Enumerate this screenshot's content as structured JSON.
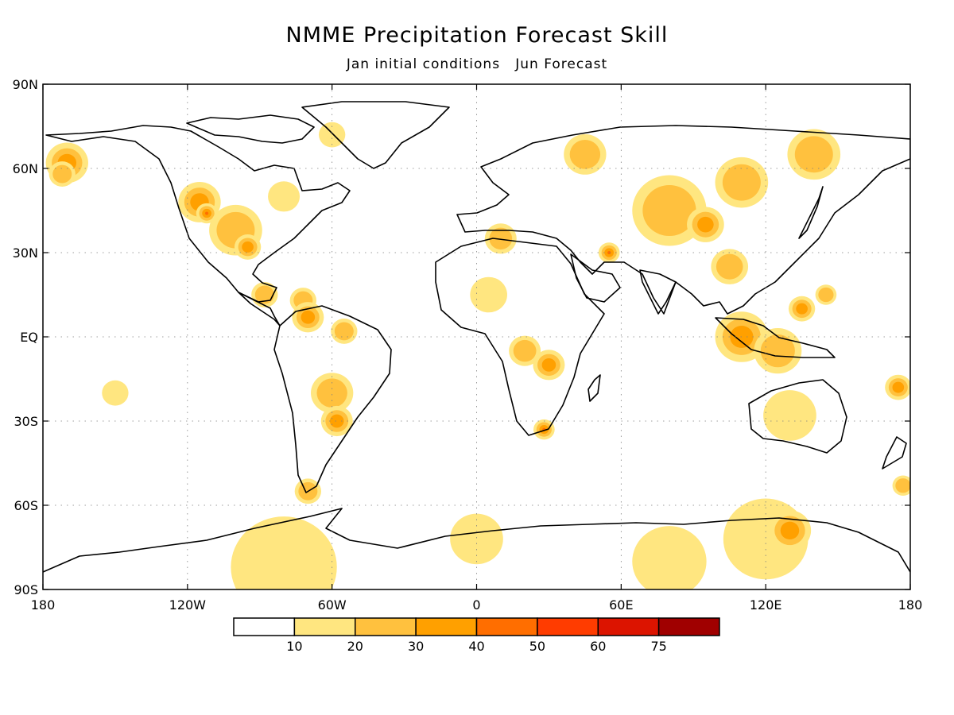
{
  "title": "NMME Precipitation Forecast Skill",
  "subtitle": "Jan initial conditions   Jun Forecast",
  "axes": {
    "lon_ticks": [
      {
        "value": -180,
        "label": "180"
      },
      {
        "value": -120,
        "label": "120W"
      },
      {
        "value": -60,
        "label": "60W"
      },
      {
        "value": 0,
        "label": "0"
      },
      {
        "value": 60,
        "label": "60E"
      },
      {
        "value": 120,
        "label": "120E"
      },
      {
        "value": 180,
        "label": "180"
      }
    ],
    "lat_ticks": [
      {
        "value": 90,
        "label": "90N"
      },
      {
        "value": 60,
        "label": "60N"
      },
      {
        "value": 30,
        "label": "30N"
      },
      {
        "value": 0,
        "label": "EQ"
      },
      {
        "value": -30,
        "label": "30S"
      },
      {
        "value": -60,
        "label": "60S"
      },
      {
        "value": -90,
        "label": "90S"
      }
    ],
    "lon_range": [
      -180,
      180
    ],
    "lat_range": [
      -90,
      90
    ],
    "grid": true
  },
  "colorbar": {
    "labels": [
      "10",
      "20",
      "30",
      "40",
      "50",
      "60",
      "75"
    ],
    "colors": [
      "#ffffff",
      "#ffe680",
      "#ffc13e",
      "#ffa000",
      "#ff6e00",
      "#ff3c00",
      "#dc1400",
      "#a00000"
    ]
  },
  "skill_regions": [
    {
      "lon": -170,
      "lat": 62,
      "r": 8,
      "level": 3
    },
    {
      "lon": -172,
      "lat": 58,
      "r": 5,
      "level": 2
    },
    {
      "lon": -115,
      "lat": 48,
      "r": 8,
      "level": 3
    },
    {
      "lon": -112,
      "lat": 44,
      "r": 4,
      "level": 4
    },
    {
      "lon": -100,
      "lat": 38,
      "r": 10,
      "level": 2
    },
    {
      "lon": -95,
      "lat": 32,
      "r": 5,
      "level": 3
    },
    {
      "lon": -80,
      "lat": 50,
      "r": 6,
      "level": 1
    },
    {
      "lon": -60,
      "lat": 72,
      "r": 5,
      "level": 1
    },
    {
      "lon": -88,
      "lat": 15,
      "r": 5,
      "level": 2
    },
    {
      "lon": -72,
      "lat": 13,
      "r": 5,
      "level": 2
    },
    {
      "lon": -70,
      "lat": 7,
      "r": 6,
      "level": 3
    },
    {
      "lon": -55,
      "lat": 2,
      "r": 5,
      "level": 2
    },
    {
      "lon": -60,
      "lat": -20,
      "r": 8,
      "level": 2
    },
    {
      "lon": -58,
      "lat": -30,
      "r": 6,
      "level": 3
    },
    {
      "lon": -70,
      "lat": -55,
      "r": 5,
      "level": 2
    },
    {
      "lon": 10,
      "lat": 35,
      "r": 6,
      "level": 2
    },
    {
      "lon": 5,
      "lat": 15,
      "r": 7,
      "level": 1
    },
    {
      "lon": 20,
      "lat": -5,
      "r": 6,
      "level": 2
    },
    {
      "lon": 30,
      "lat": -10,
      "r": 6,
      "level": 3
    },
    {
      "lon": 28,
      "lat": -33,
      "r": 4,
      "level": 4
    },
    {
      "lon": 45,
      "lat": 65,
      "r": 8,
      "level": 2
    },
    {
      "lon": 55,
      "lat": 30,
      "r": 4,
      "level": 4
    },
    {
      "lon": 80,
      "lat": 45,
      "r": 14,
      "level": 2
    },
    {
      "lon": 95,
      "lat": 40,
      "r": 7,
      "level": 3
    },
    {
      "lon": 110,
      "lat": 55,
      "r": 10,
      "level": 2
    },
    {
      "lon": 140,
      "lat": 65,
      "r": 10,
      "level": 2
    },
    {
      "lon": 105,
      "lat": 25,
      "r": 7,
      "level": 2
    },
    {
      "lon": 110,
      "lat": 0,
      "r": 10,
      "level": 3
    },
    {
      "lon": 125,
      "lat": -5,
      "r": 9,
      "level": 2
    },
    {
      "lon": 135,
      "lat": 10,
      "r": 5,
      "level": 3
    },
    {
      "lon": 145,
      "lat": 15,
      "r": 4,
      "level": 2
    },
    {
      "lon": 130,
      "lat": -28,
      "r": 10,
      "level": 1
    },
    {
      "lon": 175,
      "lat": -18,
      "r": 5,
      "level": 3
    },
    {
      "lon": -150,
      "lat": -20,
      "r": 5,
      "level": 1
    },
    {
      "lon": 177,
      "lat": -53,
      "r": 4,
      "level": 2
    },
    {
      "lon": 120,
      "lat": -72,
      "r": 16,
      "level": 1
    },
    {
      "lon": 130,
      "lat": -69,
      "r": 8,
      "level": 3
    },
    {
      "lon": 0,
      "lat": -72,
      "r": 10,
      "level": 1
    },
    {
      "lon": -80,
      "lat": -82,
      "r": 20,
      "level": 1
    },
    {
      "lon": 80,
      "lat": -80,
      "r": 14,
      "level": 1
    }
  ]
}
